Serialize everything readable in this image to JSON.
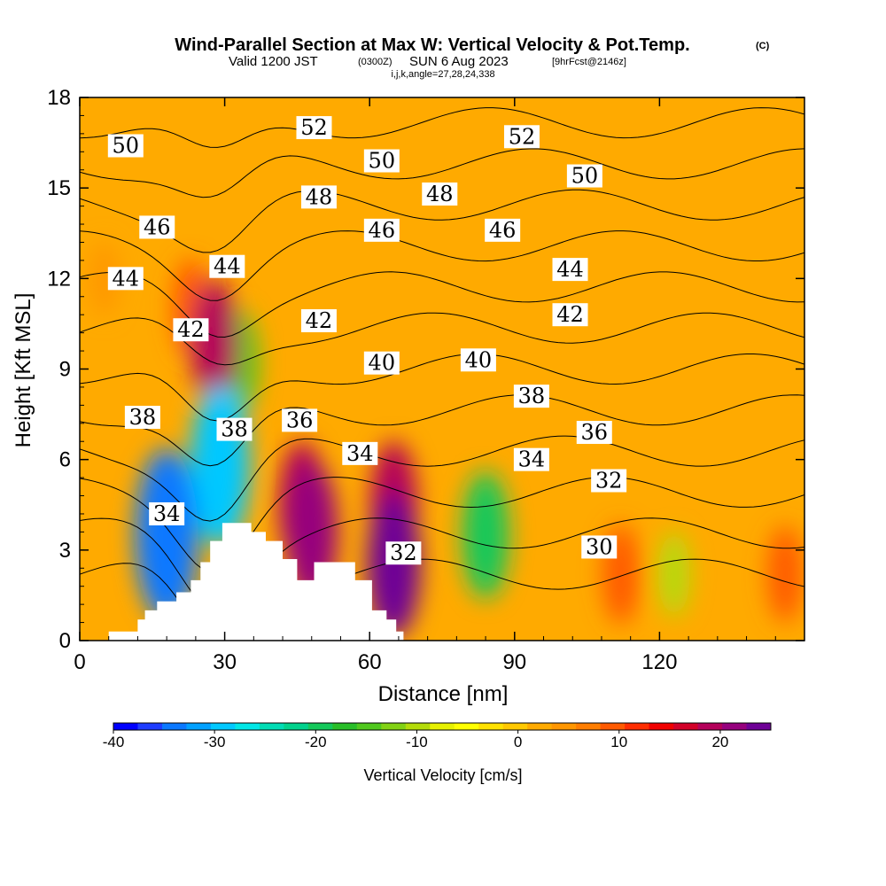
{
  "chart_data": {
    "type": "heatmap",
    "title": "Wind-Parallel Section at Max W: Vertical Velocity & Pot.Temp.",
    "title_mark": "(C)",
    "subtitle_valid": "Valid 1200 JST",
    "subtitle_z": "(0300Z)",
    "subtitle_date": "SUN 6 Aug 2023",
    "subtitle_fcst": "[9hrFcst@2146z]",
    "subtitle_indices": "i,j,k,angle=27,28,24,338",
    "xlabel": "Distance [nm]",
    "ylabel": "Height [Kft MSL]",
    "xlim": [
      0,
      150
    ],
    "ylim": [
      0,
      18
    ],
    "x_ticks": [
      "0",
      "30",
      "60",
      "90",
      "120"
    ],
    "y_ticks": [
      "0",
      "3",
      "6",
      "9",
      "12",
      "15",
      "18"
    ],
    "colorbar": {
      "label": "Vertical Velocity [cm/s]",
      "range": [
        -40,
        25
      ],
      "step": 2.5,
      "tick_labels": [
        "-40",
        "-30",
        "-20",
        "-10",
        "0",
        "10",
        "20"
      ],
      "colors": [
        "#0000ff",
        "#1e3cff",
        "#0a78ff",
        "#00a0ff",
        "#00c8ff",
        "#00e6e6",
        "#00dcb4",
        "#00d28c",
        "#14c85a",
        "#28be28",
        "#50c81e",
        "#82d214",
        "#b4dc0a",
        "#e6f000",
        "#ffff00",
        "#ffe100",
        "#ffc800",
        "#ffaa00",
        "#ff9600",
        "#ff7d00",
        "#ff5a00",
        "#ff2d00",
        "#f00000",
        "#d20028",
        "#b4005a",
        "#96007d",
        "#6e0096"
      ]
    },
    "vertical_velocity_cells": [
      {
        "x": 5,
        "y": 12,
        "w": 5,
        "level": "weak ascent"
      },
      {
        "x": 23,
        "y": 11,
        "w": 12,
        "level": "updraft"
      },
      {
        "x": 28,
        "y": 9.8,
        "w": 21,
        "level": "updraft core"
      },
      {
        "x": 46,
        "y": 4.5,
        "w": 20,
        "level": "updraft core"
      },
      {
        "x": 48,
        "y": 3.6,
        "w": 24,
        "level": "updraft max"
      },
      {
        "x": 65,
        "y": 4.5,
        "w": 20,
        "level": "updraft core"
      },
      {
        "x": 65,
        "y": 2.5,
        "w": 25,
        "level": "updraft max"
      },
      {
        "x": 112,
        "y": 2.2,
        "w": 12,
        "level": "updraft"
      },
      {
        "x": 146,
        "y": 2.2,
        "w": 11,
        "level": "updraft"
      },
      {
        "x": 18,
        "y": 3.5,
        "w": -33,
        "level": "downdraft core"
      },
      {
        "x": 29,
        "y": 5.8,
        "w": -30,
        "level": "downdraft"
      },
      {
        "x": 33,
        "y": 9.2,
        "w": -14,
        "level": "downdraft"
      },
      {
        "x": 84,
        "y": 3.5,
        "w": -20,
        "level": "downdraft"
      },
      {
        "x": 123,
        "y": 2.2,
        "w": -8,
        "level": "weak descent"
      }
    ],
    "potential_temperature": {
      "units": "C",
      "contour_levels": [
        30,
        32,
        34,
        36,
        38,
        40,
        42,
        44,
        46,
        48,
        50,
        52
      ],
      "labels": [
        {
          "text": "50",
          "x": 9.5,
          "y": 16.4
        },
        {
          "text": "52",
          "x": 48.5,
          "y": 17.0
        },
        {
          "text": "52",
          "x": 91.5,
          "y": 16.7
        },
        {
          "text": "50",
          "x": 62.5,
          "y": 15.9
        },
        {
          "text": "50",
          "x": 104.5,
          "y": 15.4
        },
        {
          "text": "48",
          "x": 49.5,
          "y": 14.7
        },
        {
          "text": "48",
          "x": 74.5,
          "y": 14.8
        },
        {
          "text": "46",
          "x": 16.0,
          "y": 13.7
        },
        {
          "text": "46",
          "x": 62.5,
          "y": 13.6
        },
        {
          "text": "46",
          "x": 87.5,
          "y": 13.6
        },
        {
          "text": "44",
          "x": 9.5,
          "y": 12.0
        },
        {
          "text": "44",
          "x": 30.5,
          "y": 12.4
        },
        {
          "text": "44",
          "x": 101.5,
          "y": 12.3
        },
        {
          "text": "42",
          "x": 23.0,
          "y": 10.3
        },
        {
          "text": "42",
          "x": 49.5,
          "y": 10.6
        },
        {
          "text": "42",
          "x": 101.5,
          "y": 10.8
        },
        {
          "text": "40",
          "x": 62.5,
          "y": 9.2
        },
        {
          "text": "40",
          "x": 82.5,
          "y": 9.3
        },
        {
          "text": "38",
          "x": 13.0,
          "y": 7.4
        },
        {
          "text": "38",
          "x": 32.0,
          "y": 7.0
        },
        {
          "text": "38",
          "x": 93.5,
          "y": 8.1
        },
        {
          "text": "36",
          "x": 45.5,
          "y": 7.3
        },
        {
          "text": "36",
          "x": 106.5,
          "y": 6.9
        },
        {
          "text": "34",
          "x": 58.0,
          "y": 6.2
        },
        {
          "text": "34",
          "x": 93.5,
          "y": 6.0
        },
        {
          "text": "34",
          "x": 18.0,
          "y": 4.2
        },
        {
          "text": "32",
          "x": 109.5,
          "y": 5.3
        },
        {
          "text": "32",
          "x": 67.0,
          "y": 2.9
        },
        {
          "text": "30",
          "x": 107.5,
          "y": 3.1
        }
      ]
    },
    "terrain_top": [
      [
        0,
        0
      ],
      [
        6,
        0
      ],
      [
        6,
        0.3
      ],
      [
        12,
        0.3
      ],
      [
        12,
        0.7
      ],
      [
        13.5,
        0.7
      ],
      [
        13.5,
        1.0
      ],
      [
        16,
        1.0
      ],
      [
        16,
        1.3
      ],
      [
        20,
        1.3
      ],
      [
        20,
        1.6
      ],
      [
        23,
        1.6
      ],
      [
        23,
        2.0
      ],
      [
        25,
        2.0
      ],
      [
        25,
        2.6
      ],
      [
        27,
        2.6
      ],
      [
        27,
        3.3
      ],
      [
        29.5,
        3.3
      ],
      [
        29.5,
        3.9
      ],
      [
        35.5,
        3.9
      ],
      [
        35.5,
        3.6
      ],
      [
        38.5,
        3.6
      ],
      [
        38.5,
        3.3
      ],
      [
        42,
        3.3
      ],
      [
        42,
        2.7
      ],
      [
        45,
        2.7
      ],
      [
        45,
        2.0
      ],
      [
        48.5,
        2.0
      ],
      [
        48.5,
        2.6
      ],
      [
        57,
        2.6
      ],
      [
        57,
        2.0
      ],
      [
        60.5,
        2.0
      ],
      [
        60.5,
        1.0
      ],
      [
        63.5,
        1.0
      ],
      [
        63.5,
        0.7
      ],
      [
        65.5,
        0.7
      ],
      [
        65.5,
        0.3
      ],
      [
        67,
        0.3
      ],
      [
        67,
        0
      ]
    ]
  }
}
